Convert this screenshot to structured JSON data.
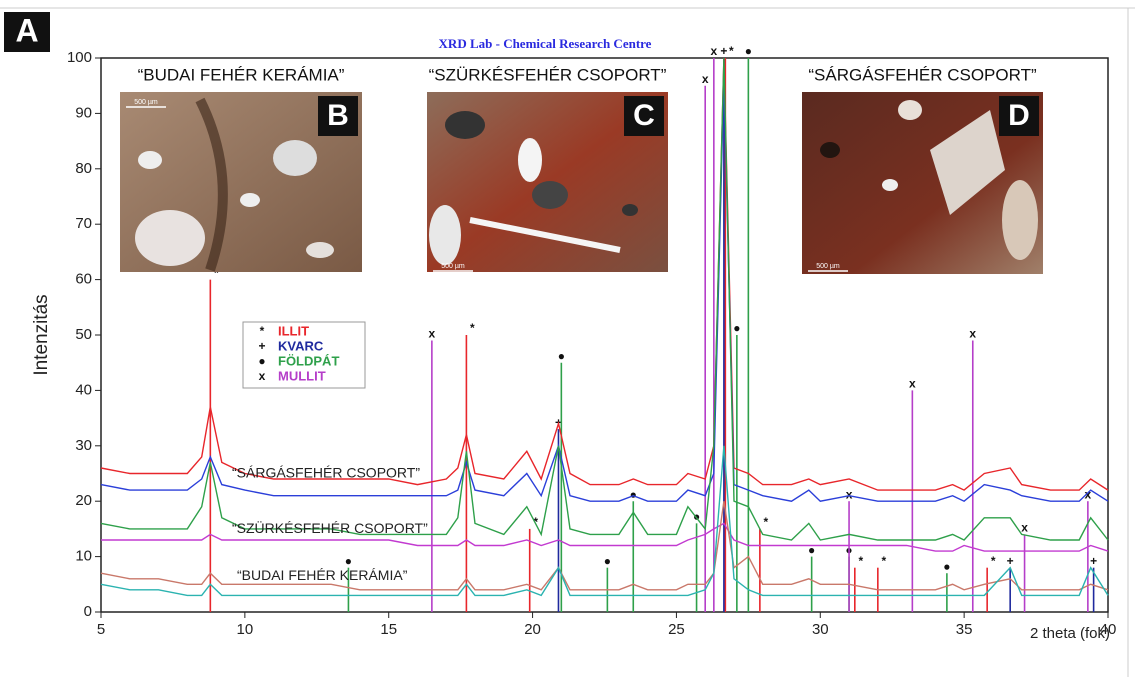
{
  "panel_label": "A",
  "chart_data": {
    "type": "line",
    "title": "XRD Lab - Chemical Research Centre",
    "xlabel": "2 theta (fok)",
    "ylabel": "Intenzitás",
    "xlim": [
      5,
      40
    ],
    "xticks": [
      5,
      10,
      15,
      20,
      25,
      30,
      35,
      40
    ],
    "ylim": [
      0,
      100
    ],
    "yticks": [
      0,
      10,
      20,
      30,
      40,
      50,
      60,
      70,
      80,
      90,
      100
    ],
    "x": [
      5,
      6,
      7,
      8,
      8.5,
      8.8,
      9.2,
      10,
      11,
      12,
      13,
      14,
      15,
      16,
      17,
      17.4,
      17.7,
      18,
      19,
      19.8,
      20.3,
      20.9,
      21.3,
      22,
      23,
      23.5,
      24,
      25,
      25.4,
      26,
      26.3,
      26.65,
      27,
      27.5,
      28,
      29,
      29.6,
      30,
      31,
      32,
      33,
      34,
      34.6,
      35,
      35.7,
      36.6,
      37,
      38,
      39,
      39.4,
      40
    ],
    "series": [
      {
        "color": "#e8262b",
        "values": [
          26,
          25,
          25,
          25,
          28,
          37,
          27,
          25,
          24,
          24,
          24,
          24,
          24,
          23,
          24,
          26,
          32,
          25,
          24,
          29,
          24,
          34,
          25,
          23,
          23,
          24,
          23,
          23,
          25,
          24,
          30,
          100,
          26,
          25,
          23,
          23,
          24,
          23,
          24,
          22,
          22,
          22,
          23,
          22,
          25,
          26,
          23,
          22,
          22,
          24,
          22
        ]
      },
      {
        "color": "#2b3fd9",
        "values": [
          23,
          22,
          22,
          22,
          24,
          28,
          23,
          22,
          21,
          21,
          21,
          21,
          21,
          21,
          21,
          22,
          27,
          22,
          21,
          25,
          21,
          30,
          21,
          20,
          20,
          21,
          20,
          20,
          22,
          21,
          25,
          97,
          23,
          22,
          21,
          20,
          22,
          20,
          21,
          20,
          20,
          20,
          21,
          20,
          23,
          22,
          21,
          20,
          20,
          22,
          20
        ]
      },
      {
        "color": "#2ea04a",
        "values": [
          16,
          15,
          15,
          15,
          19,
          27,
          17,
          15,
          15,
          15,
          15,
          14,
          14,
          14,
          14,
          17,
          29,
          16,
          14,
          19,
          14,
          30,
          15,
          14,
          14,
          18,
          14,
          14,
          19,
          15,
          30,
          100,
          20,
          19,
          14,
          13,
          16,
          13,
          14,
          13,
          13,
          13,
          14,
          13,
          17,
          17,
          14,
          13,
          13,
          17,
          13
        ]
      },
      {
        "color": "#c23ad0",
        "values": [
          13,
          13,
          13,
          13,
          13,
          14,
          13,
          13,
          13,
          13,
          13,
          13,
          13,
          12,
          12,
          12,
          13,
          12,
          12,
          13,
          12,
          13,
          12,
          12,
          12,
          12,
          12,
          12,
          13,
          14,
          15,
          16,
          13,
          12,
          12,
          12,
          12,
          12,
          12,
          12,
          12,
          11,
          11,
          12,
          11,
          11,
          11,
          11,
          11,
          12,
          11
        ]
      },
      {
        "color": "#c9786a",
        "values": [
          7,
          6,
          6,
          5,
          5,
          7,
          5,
          5,
          5,
          5,
          5,
          4,
          4,
          4,
          4,
          4,
          6,
          4,
          4,
          5,
          4,
          8,
          4,
          4,
          4,
          5,
          4,
          4,
          5,
          5,
          7,
          20,
          8,
          10,
          5,
          5,
          6,
          5,
          5,
          4,
          4,
          4,
          5,
          4,
          5,
          6,
          4,
          4,
          4,
          5,
          4
        ]
      },
      {
        "color": "#2bb3b0",
        "values": [
          5,
          4,
          4,
          3,
          3,
          5,
          3,
          3,
          3,
          3,
          3,
          3,
          3,
          3,
          3,
          3,
          5,
          3,
          3,
          4,
          3,
          8,
          3,
          3,
          3,
          3,
          3,
          3,
          3,
          4,
          7,
          30,
          6,
          4,
          3,
          3,
          3,
          3,
          3,
          3,
          3,
          3,
          3,
          3,
          3,
          8,
          3,
          3,
          3,
          8,
          3
        ]
      }
    ],
    "references": [
      {
        "name": "ILLIT",
        "symbol": "*",
        "color": "#e8262b",
        "peaks_x": [
          8.8,
          17.7,
          19.9,
          26.7,
          27.9,
          31.2,
          32.0,
          35.8
        ],
        "peaks_y": [
          60,
          50,
          15,
          100,
          15,
          8,
          8,
          8
        ]
      },
      {
        "name": "KVARC",
        "symbol": "+",
        "color": "#1f2a9e",
        "peaks_x": [
          20.9,
          26.65,
          36.6,
          39.5
        ],
        "peaks_y": [
          33,
          100,
          8,
          8
        ]
      },
      {
        "name": "FÖLDPÁT",
        "symbol": "●",
        "color": "#2ea04a",
        "peaks_x": [
          13.6,
          21.0,
          22.6,
          23.5,
          25.7,
          27.1,
          27.5,
          29.7,
          31.0,
          34.4
        ],
        "peaks_y": [
          8,
          45,
          8,
          20,
          16,
          50,
          100,
          10,
          10,
          7
        ]
      },
      {
        "name": "MULLIT",
        "symbol": "x",
        "color": "#b53ec9",
        "peaks_x": [
          16.5,
          26.0,
          26.3,
          31.0,
          33.2,
          35.3,
          37.1,
          39.3
        ],
        "peaks_y": [
          49,
          95,
          100,
          20,
          40,
          49,
          14,
          20
        ]
      }
    ],
    "group_labels": [
      {
        "text": "“SÁRGÁSFEHÉR CSOPORT”",
        "y": 26
      },
      {
        "text": "“SZÜRKÉSFEHÉR CSOPORT”",
        "y": 16
      },
      {
        "text": "“BUDAI FEHÉR KERÁMIA”",
        "y": 7.5
      }
    ]
  },
  "photos": [
    {
      "title": "“BUDAI FEHÉR KERÁMIA”",
      "letter": "B",
      "scale": "500 µm"
    },
    {
      "title": "“SZÜRKÉSFEHÉR CSOPORT”",
      "letter": "C",
      "scale": "500 µm"
    },
    {
      "title": "“SÁRGÁSFEHÉR CSOPORT”",
      "letter": "D",
      "scale": "500 µm"
    }
  ]
}
